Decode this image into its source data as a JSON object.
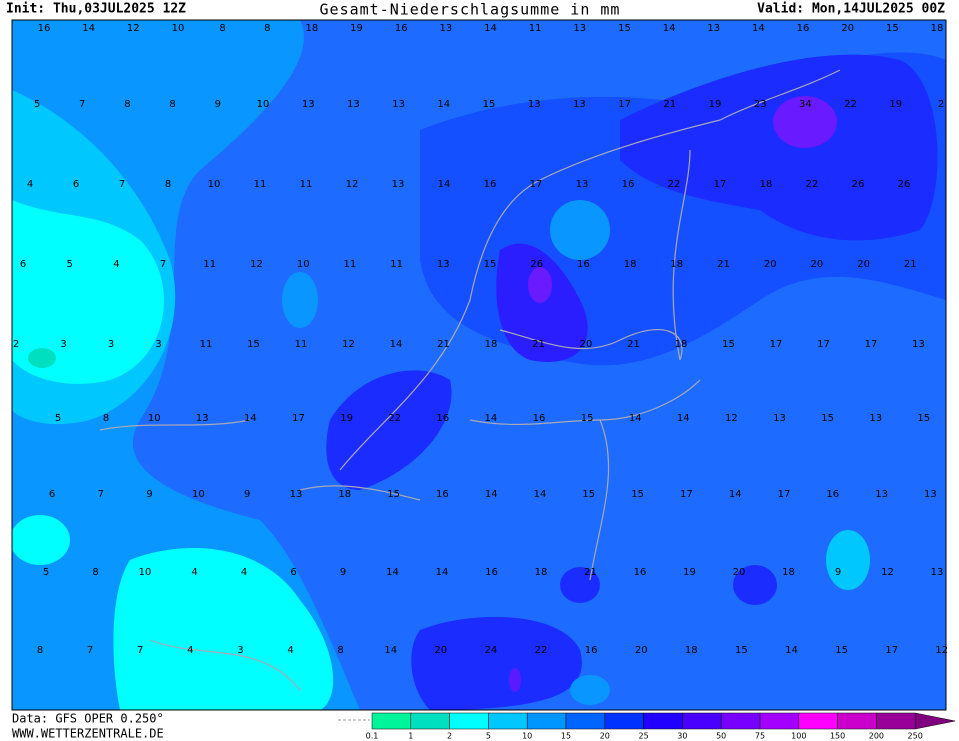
{
  "header": {
    "init": "Init: Thu,03JUL2025 12Z",
    "title": "Gesamt-Niederschlagsumme in mm",
    "valid": "Valid: Mon,14JUL2025 00Z"
  },
  "footer": {
    "data": "Data: GFS OPER 0.250°",
    "site": "WWW.WETTERZENTRALE.DE"
  },
  "legend": {
    "labels": [
      "0.1",
      "1",
      "2",
      "5",
      "10",
      "15",
      "20",
      "25",
      "30",
      "50",
      "75",
      "100",
      "150",
      "200",
      "250"
    ],
    "colors": [
      "#00f59a",
      "#00e0c0",
      "#00ffff",
      "#00c8ff",
      "#0096ff",
      "#0064ff",
      "#0032ff",
      "#2200ff",
      "#4a00ff",
      "#7700ff",
      "#a400ff",
      "#ff00ff",
      "#cc00cc",
      "#990099"
    ]
  },
  "map": {
    "rows": [
      [
        16,
        14,
        12,
        10,
        8,
        8,
        18,
        19,
        16,
        13,
        14,
        11,
        13,
        15,
        14,
        13,
        14,
        16,
        20,
        15,
        18
      ],
      [
        5,
        7,
        8,
        8,
        9,
        10,
        13,
        13,
        13,
        14,
        15,
        13,
        13,
        17,
        21,
        19,
        23,
        34,
        22,
        19,
        2
      ],
      [
        4,
        6,
        7,
        8,
        10,
        11,
        11,
        12,
        13,
        14,
        16,
        17,
        13,
        16,
        22,
        17,
        18,
        22,
        26,
        26
      ],
      [
        6,
        5,
        4,
        7,
        11,
        12,
        10,
        11,
        11,
        13,
        15,
        26,
        16,
        18,
        18,
        21,
        20,
        20,
        20,
        21
      ],
      [
        2,
        3,
        3,
        3,
        11,
        15,
        11,
        12,
        14,
        21,
        18,
        21,
        20,
        21,
        18,
        15,
        17,
        17,
        17,
        13
      ],
      [
        5,
        8,
        10,
        13,
        14,
        17,
        19,
        22,
        16,
        14,
        16,
        15,
        14,
        14,
        12,
        13,
        15,
        13,
        15
      ],
      [
        6,
        7,
        9,
        10,
        9,
        13,
        18,
        15,
        16,
        14,
        14,
        15,
        15,
        17,
        14,
        17,
        16,
        13,
        13
      ],
      [
        5,
        8,
        10,
        4,
        4,
        6,
        9,
        14,
        14,
        16,
        18,
        21,
        16,
        19,
        20,
        18,
        9,
        12,
        13
      ],
      [
        8,
        7,
        7,
        4,
        3,
        4,
        8,
        14,
        20,
        24,
        22,
        16,
        20,
        18,
        15,
        14,
        15,
        17,
        12
      ]
    ]
  }
}
